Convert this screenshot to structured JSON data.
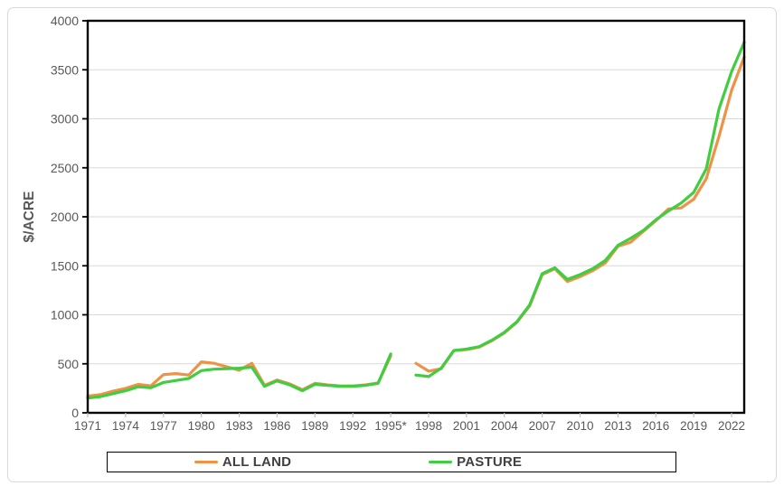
{
  "chart_data": {
    "type": "line",
    "title": "",
    "xlabel": "",
    "ylabel": "$/ACRE",
    "ylim": [
      0,
      4000
    ],
    "y_ticks": [
      0,
      500,
      1000,
      1500,
      2000,
      2500,
      3000,
      3500,
      4000
    ],
    "x_range": [
      1971,
      2023
    ],
    "x_tick_years": [
      1971,
      1974,
      1977,
      1980,
      1983,
      1986,
      1989,
      1992,
      1995,
      1998,
      2001,
      2004,
      2007,
      2010,
      2013,
      2016,
      2019,
      2022
    ],
    "x_tick_labels": [
      "1971",
      "1974",
      "1977",
      "1980",
      "1983",
      "1986",
      "1989",
      "1992",
      "1995*",
      "1998",
      "2001",
      "2004",
      "2007",
      "2010",
      "2013",
      "2016",
      "2019",
      "2022"
    ],
    "grid": "horizontal",
    "legend_position": "bottom",
    "gap_year": 1996,
    "years": [
      1971,
      1972,
      1973,
      1974,
      1975,
      1976,
      1977,
      1978,
      1979,
      1980,
      1981,
      1982,
      1983,
      1984,
      1985,
      1986,
      1987,
      1988,
      1989,
      1990,
      1991,
      1992,
      1993,
      1994,
      1995,
      1996,
      1997,
      1998,
      1999,
      2000,
      2001,
      2002,
      2003,
      2004,
      2005,
      2006,
      2007,
      2008,
      2009,
      2010,
      2011,
      2012,
      2013,
      2014,
      2015,
      2016,
      2017,
      2018,
      2019,
      2020,
      2021,
      2022,
      2023
    ],
    "series": [
      {
        "name": "ALL LAND",
        "color": "#EF9245",
        "values": [
          170,
          185,
          220,
          250,
          290,
          275,
          390,
          400,
          385,
          520,
          505,
          470,
          435,
          505,
          280,
          335,
          295,
          235,
          300,
          285,
          275,
          275,
          285,
          305,
          580,
          null,
          505,
          425,
          450,
          635,
          645,
          670,
          735,
          815,
          925,
          1090,
          1410,
          1470,
          1340,
          1390,
          1450,
          1530,
          1700,
          1740,
          1850,
          1960,
          2080,
          2090,
          2180,
          2390,
          2820,
          3290,
          3630
        ]
      },
      {
        "name": "PASTURE",
        "color": "#41CD41",
        "values": [
          150,
          165,
          195,
          225,
          265,
          255,
          310,
          330,
          350,
          430,
          445,
          450,
          455,
          465,
          270,
          325,
          285,
          225,
          290,
          280,
          270,
          270,
          280,
          300,
          600,
          null,
          385,
          370,
          455,
          635,
          650,
          675,
          740,
          820,
          930,
          1100,
          1420,
          1480,
          1360,
          1410,
          1470,
          1555,
          1710,
          1780,
          1860,
          1970,
          2060,
          2140,
          2250,
          2490,
          3100,
          3480,
          3780
        ]
      }
    ],
    "style": {
      "gridline_color": "#d9d9d9",
      "axis_color": "#000000",
      "tick_label_color": "#595959",
      "x_tick_mark_color": "#bfbfbf",
      "plot_border_color": "#000000"
    }
  }
}
